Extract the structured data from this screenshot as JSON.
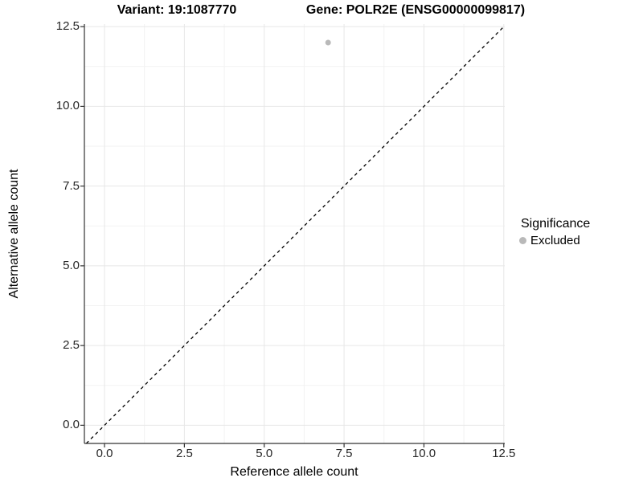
{
  "chart_data": {
    "type": "scatter",
    "title_left": "Variant: 19:1087770",
    "title_right": "Gene: POLR2E (ENSG00000099817)",
    "xlabel": "Reference allele count",
    "ylabel": "Alternative allele count",
    "xlim": [
      -0.63,
      12.53
    ],
    "ylim": [
      -0.57,
      12.58
    ],
    "x_ticks": [
      0,
      2.5,
      5,
      7.5,
      10,
      12.5
    ],
    "x_tick_labels": [
      "0.0",
      "2.5",
      "5.0",
      "7.5",
      "10.0",
      "12.5"
    ],
    "y_ticks": [
      0,
      2.5,
      5,
      7.5,
      10,
      12.5
    ],
    "y_tick_labels": [
      "0.0",
      "2.5",
      "5.0",
      "7.5",
      "10.0",
      "12.5"
    ],
    "x_minor_ticks": [
      1.25,
      3.75,
      6.25,
      8.75,
      11.25
    ],
    "y_minor_ticks": [
      1.25,
      3.75,
      6.25,
      8.75,
      11.25
    ],
    "grid": true,
    "series": [
      {
        "name": "Excluded",
        "color": "#b9b9b9",
        "points": [
          {
            "x": 7,
            "y": 12
          }
        ]
      }
    ],
    "reference_line": {
      "kind": "identity",
      "slope": 1,
      "intercept": 0,
      "linestyle": "dashed",
      "color": "#000000"
    },
    "legend": {
      "title": "Significance",
      "position": "right",
      "items": [
        {
          "label": "Excluded",
          "color": "#b9b9b9",
          "marker": "circle"
        }
      ]
    },
    "style": {
      "background": "#ffffff",
      "grid_major_color": "#e7e7e7",
      "grid_minor_color": "#f2f2f2",
      "axis_line_color": "#333333",
      "tick_color": "#333333",
      "point_radius": 3.5,
      "dash_pattern": "4 4"
    }
  }
}
